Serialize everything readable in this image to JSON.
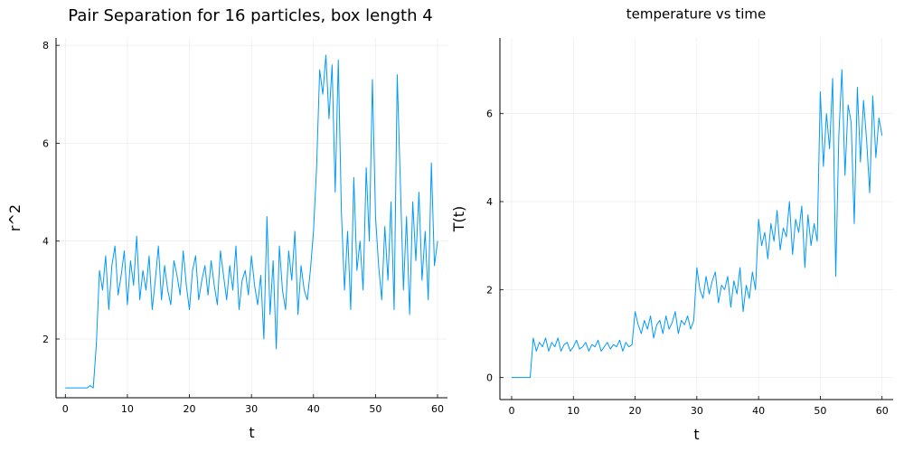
{
  "chart_data": [
    {
      "type": "line",
      "title": "Pair Separation for 16 particles, box length 4",
      "xlabel": "t",
      "ylabel": "r^2",
      "color": "#009af9",
      "grid": true,
      "xlim": [
        -1.5,
        61.6
      ],
      "ylim": [
        0.8,
        8.15
      ],
      "xticks": [
        0,
        10,
        20,
        30,
        40,
        50,
        60
      ],
      "yticks": [
        2,
        4,
        6,
        8
      ],
      "x": [
        0,
        0.5,
        1,
        1.5,
        2,
        2.5,
        3,
        3.5,
        4,
        4.5,
        5,
        5.5,
        6,
        6.5,
        7,
        7.5,
        8,
        8.5,
        9,
        9.5,
        10,
        10.5,
        11,
        11.5,
        12,
        12.5,
        13,
        13.5,
        14,
        14.5,
        15,
        15.5,
        16,
        16.5,
        17,
        17.5,
        18,
        18.5,
        19,
        19.5,
        20,
        20.5,
        21,
        21.5,
        22,
        22.5,
        23,
        23.5,
        24,
        24.5,
        25,
        25.5,
        26,
        26.5,
        27,
        27.5,
        28,
        28.5,
        29,
        29.5,
        30,
        30.5,
        31,
        31.5,
        32,
        32.5,
        33,
        33.5,
        34,
        34.5,
        35,
        35.5,
        36,
        36.5,
        37,
        37.5,
        38,
        38.5,
        39,
        39.5,
        40,
        40.5,
        41,
        41.5,
        42,
        42.5,
        43,
        43.5,
        44,
        44.5,
        45,
        45.5,
        46,
        46.5,
        47,
        47.5,
        48,
        48.5,
        49,
        49.5,
        50,
        50.5,
        51,
        51.5,
        52,
        52.5,
        53,
        53.5,
        54,
        54.5,
        55,
        55.5,
        56,
        56.5,
        57,
        57.5,
        58,
        58.5,
        59,
        59.5,
        60
      ],
      "values": [
        1,
        1,
        1,
        1,
        1,
        1,
        1,
        1,
        1.05,
        1.0,
        1.9,
        3.4,
        3.0,
        3.7,
        2.6,
        3.5,
        3.9,
        2.9,
        3.3,
        3.8,
        2.7,
        3.6,
        3.1,
        4.1,
        2.8,
        3.4,
        3.0,
        3.7,
        2.6,
        3.2,
        3.9,
        2.8,
        3.5,
        3.0,
        2.7,
        3.6,
        3.3,
        2.9,
        3.8,
        3.1,
        2.6,
        3.4,
        3.7,
        2.8,
        3.2,
        3.5,
        2.9,
        3.6,
        3.1,
        2.7,
        3.8,
        3.3,
        2.8,
        3.5,
        3.0,
        3.9,
        2.6,
        3.2,
        3.4,
        2.9,
        3.7,
        3.1,
        2.7,
        3.3,
        2.0,
        4.5,
        2.5,
        3.6,
        1.8,
        3.9,
        3.0,
        2.6,
        3.8,
        3.2,
        4.2,
        2.5,
        3.5,
        3.0,
        2.8,
        3.4,
        4.2,
        5.5,
        7.5,
        7.0,
        7.8,
        6.5,
        7.6,
        5.0,
        7.7,
        4.6,
        3.0,
        4.2,
        2.6,
        5.3,
        3.4,
        4.0,
        3.0,
        5.5,
        4.0,
        7.3,
        4.5,
        3.5,
        2.8,
        4.3,
        3.2,
        4.8,
        2.6,
        7.4,
        5.2,
        3.0,
        4.5,
        2.5,
        4.8,
        3.6,
        5.0,
        3.2,
        4.2,
        2.8,
        5.6,
        3.5,
        4.0
      ]
    },
    {
      "type": "line",
      "title": "temperature vs time",
      "xlabel": "t",
      "ylabel": "T(t)",
      "color": "#009af9",
      "grid": true,
      "xlim": [
        -1.9,
        61.8
      ],
      "ylim": [
        -0.5,
        7.72
      ],
      "xticks": [
        0,
        10,
        20,
        30,
        40,
        50,
        60
      ],
      "yticks": [
        0,
        2,
        4,
        6
      ],
      "x": [
        0,
        0.5,
        1,
        1.5,
        2,
        2.5,
        3,
        3.5,
        4,
        4.5,
        5,
        5.5,
        6,
        6.5,
        7,
        7.5,
        8,
        8.5,
        9,
        9.5,
        10,
        10.5,
        11,
        11.5,
        12,
        12.5,
        13,
        13.5,
        14,
        14.5,
        15,
        15.5,
        16,
        16.5,
        17,
        17.5,
        18,
        18.5,
        19,
        19.5,
        20,
        20.5,
        21,
        21.5,
        22,
        22.5,
        23,
        23.5,
        24,
        24.5,
        25,
        25.5,
        26,
        26.5,
        27,
        27.5,
        28,
        28.5,
        29,
        29.5,
        30,
        30.5,
        31,
        31.5,
        32,
        32.5,
        33,
        33.5,
        34,
        34.5,
        35,
        35.5,
        36,
        36.5,
        37,
        37.5,
        38,
        38.5,
        39,
        39.5,
        40,
        40.5,
        41,
        41.5,
        42,
        42.5,
        43,
        43.5,
        44,
        44.5,
        45,
        45.5,
        46,
        46.5,
        47,
        47.5,
        48,
        48.5,
        49,
        49.5,
        50,
        50.5,
        51,
        51.5,
        52,
        52.5,
        53,
        53.5,
        54,
        54.5,
        55,
        55.5,
        56,
        56.5,
        57,
        57.5,
        58,
        58.5,
        59,
        59.5,
        60
      ],
      "values": [
        0,
        0,
        0,
        0,
        0,
        0,
        0,
        0.9,
        0.6,
        0.8,
        0.7,
        0.9,
        0.6,
        0.8,
        0.7,
        0.9,
        0.6,
        0.75,
        0.8,
        0.6,
        0.7,
        0.85,
        0.65,
        0.7,
        0.8,
        0.6,
        0.75,
        0.7,
        0.85,
        0.6,
        0.7,
        0.8,
        0.65,
        0.75,
        0.7,
        0.85,
        0.6,
        0.8,
        0.7,
        0.75,
        1.5,
        1.2,
        1.0,
        1.3,
        1.1,
        1.4,
        0.9,
        1.2,
        1.3,
        1.0,
        1.4,
        1.1,
        1.25,
        1.5,
        1.0,
        1.3,
        1.2,
        1.4,
        1.1,
        1.3,
        2.5,
        2.0,
        1.8,
        2.3,
        1.9,
        2.2,
        2.4,
        1.7,
        2.1,
        2.0,
        2.3,
        1.6,
        2.2,
        1.9,
        2.5,
        1.5,
        2.1,
        1.8,
        2.4,
        2.0,
        3.6,
        3.0,
        3.3,
        2.7,
        3.5,
        3.1,
        3.8,
        2.9,
        3.4,
        3.2,
        4.0,
        2.8,
        3.6,
        3.3,
        3.9,
        2.5,
        3.7,
        3.0,
        3.5,
        3.1,
        6.5,
        4.8,
        6.0,
        5.2,
        6.8,
        2.3,
        5.5,
        7.0,
        4.6,
        6.2,
        5.8,
        3.5,
        6.6,
        4.9,
        6.3,
        5.4,
        4.2,
        6.4,
        5.0,
        5.9,
        5.5
      ]
    }
  ]
}
